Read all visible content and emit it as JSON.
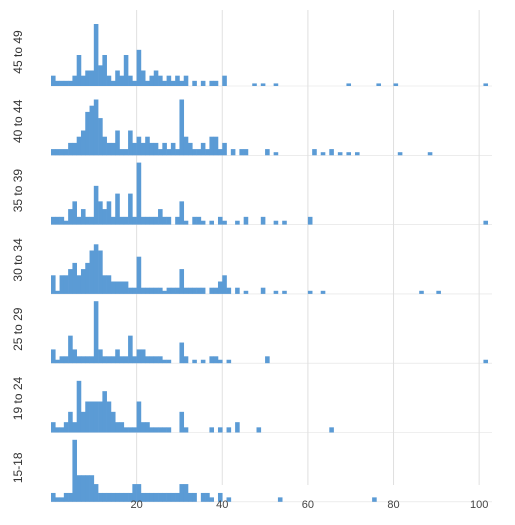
{
  "chart_data": {
    "type": "bar",
    "subtype": "small-multiple histograms",
    "x_axis": {
      "range": [
        0,
        103
      ],
      "ticks": [
        20,
        40,
        60,
        80,
        100
      ],
      "grid": true
    },
    "bar_color": "#5b9bd5",
    "grid_color": "#e0e0e0",
    "panels": [
      {
        "label": "45 to 49",
        "ymax": 12,
        "bins": [
          [
            1,
            2
          ],
          [
            2,
            1
          ],
          [
            3,
            1
          ],
          [
            4,
            1
          ],
          [
            5,
            1
          ],
          [
            6,
            2
          ],
          [
            7,
            6
          ],
          [
            8,
            2
          ],
          [
            9,
            3
          ],
          [
            10,
            3
          ],
          [
            11,
            12
          ],
          [
            12,
            4
          ],
          [
            13,
            6
          ],
          [
            14,
            2
          ],
          [
            15,
            1
          ],
          [
            16,
            3
          ],
          [
            17,
            2
          ],
          [
            18,
            6
          ],
          [
            19,
            2
          ],
          [
            20,
            1
          ],
          [
            21,
            7
          ],
          [
            22,
            3
          ],
          [
            23,
            1
          ],
          [
            24,
            2
          ],
          [
            25,
            3
          ],
          [
            26,
            2
          ],
          [
            27,
            1
          ],
          [
            28,
            2
          ],
          [
            29,
            1
          ],
          [
            30,
            2
          ],
          [
            31,
            1
          ],
          [
            32,
            2
          ],
          [
            34,
            1
          ],
          [
            36,
            1
          ],
          [
            38,
            1
          ],
          [
            39,
            1
          ],
          [
            41,
            2
          ],
          [
            48,
            0.5
          ],
          [
            50,
            0.5
          ],
          [
            53,
            0.5
          ],
          [
            70,
            0.5
          ],
          [
            77,
            0.5
          ],
          [
            81,
            0.5
          ],
          [
            102,
            0.5
          ]
        ]
      },
      {
        "label": "40 to 44",
        "ymax": 10,
        "bins": [
          [
            1,
            1
          ],
          [
            2,
            1
          ],
          [
            3,
            1
          ],
          [
            4,
            1
          ],
          [
            5,
            2
          ],
          [
            6,
            2
          ],
          [
            7,
            3
          ],
          [
            8,
            4
          ],
          [
            9,
            7
          ],
          [
            10,
            8
          ],
          [
            11,
            9
          ],
          [
            12,
            6
          ],
          [
            13,
            3
          ],
          [
            14,
            2
          ],
          [
            15,
            2
          ],
          [
            16,
            4
          ],
          [
            17,
            1
          ],
          [
            18,
            1
          ],
          [
            19,
            4
          ],
          [
            20,
            2
          ],
          [
            21,
            3
          ],
          [
            22,
            2
          ],
          [
            23,
            3
          ],
          [
            24,
            2
          ],
          [
            25,
            2
          ],
          [
            26,
            1
          ],
          [
            27,
            2
          ],
          [
            28,
            1
          ],
          [
            29,
            2
          ],
          [
            30,
            1
          ],
          [
            31,
            9
          ],
          [
            32,
            3
          ],
          [
            33,
            2
          ],
          [
            34,
            1
          ],
          [
            35,
            1
          ],
          [
            36,
            2
          ],
          [
            37,
            1
          ],
          [
            38,
            3
          ],
          [
            39,
            3
          ],
          [
            40,
            1
          ],
          [
            41,
            2
          ],
          [
            43,
            1
          ],
          [
            45,
            1
          ],
          [
            46,
            1
          ],
          [
            51,
            1
          ],
          [
            53,
            0.5
          ],
          [
            62,
            1
          ],
          [
            64,
            0.5
          ],
          [
            66,
            1
          ],
          [
            68,
            0.5
          ],
          [
            70,
            0.5
          ],
          [
            72,
            0.5
          ],
          [
            82,
            0.5
          ],
          [
            89,
            0.5
          ]
        ]
      },
      {
        "label": "35 to 39",
        "ymax": 8,
        "bins": [
          [
            1,
            1
          ],
          [
            2,
            1
          ],
          [
            3,
            1
          ],
          [
            4,
            0.5
          ],
          [
            5,
            2
          ],
          [
            6,
            3
          ],
          [
            7,
            1
          ],
          [
            8,
            2
          ],
          [
            9,
            1
          ],
          [
            10,
            1
          ],
          [
            11,
            5
          ],
          [
            12,
            3
          ],
          [
            13,
            2
          ],
          [
            14,
            3
          ],
          [
            15,
            1
          ],
          [
            16,
            4
          ],
          [
            17,
            1
          ],
          [
            18,
            1
          ],
          [
            19,
            4
          ],
          [
            20,
            1
          ],
          [
            21,
            8
          ],
          [
            22,
            1
          ],
          [
            23,
            1
          ],
          [
            24,
            1
          ],
          [
            25,
            1
          ],
          [
            26,
            2
          ],
          [
            27,
            1
          ],
          [
            28,
            1
          ],
          [
            30,
            1
          ],
          [
            31,
            3
          ],
          [
            32,
            0.5
          ],
          [
            34,
            1
          ],
          [
            35,
            1
          ],
          [
            36,
            0.5
          ],
          [
            38,
            0.5
          ],
          [
            40,
            1
          ],
          [
            41,
            0.5
          ],
          [
            44,
            0.5
          ],
          [
            46,
            1
          ],
          [
            50,
            1
          ],
          [
            53,
            0.5
          ],
          [
            55,
            0.5
          ],
          [
            61,
            1
          ],
          [
            102,
            0.5
          ]
        ]
      },
      {
        "label": "30 to 34",
        "ymax": 10,
        "bins": [
          [
            1,
            3
          ],
          [
            2,
            0.5
          ],
          [
            3,
            3
          ],
          [
            4,
            3
          ],
          [
            5,
            4
          ],
          [
            6,
            5
          ],
          [
            7,
            3
          ],
          [
            8,
            4
          ],
          [
            9,
            5
          ],
          [
            10,
            7
          ],
          [
            11,
            8
          ],
          [
            12,
            7
          ],
          [
            13,
            3
          ],
          [
            14,
            3
          ],
          [
            15,
            2
          ],
          [
            16,
            2
          ],
          [
            17,
            2
          ],
          [
            18,
            2
          ],
          [
            19,
            1
          ],
          [
            20,
            1
          ],
          [
            21,
            6
          ],
          [
            22,
            1
          ],
          [
            23,
            1
          ],
          [
            24,
            1
          ],
          [
            25,
            1
          ],
          [
            26,
            1
          ],
          [
            27,
            0.5
          ],
          [
            28,
            1
          ],
          [
            29,
            1
          ],
          [
            30,
            1
          ],
          [
            31,
            4
          ],
          [
            32,
            1
          ],
          [
            33,
            1
          ],
          [
            34,
            1
          ],
          [
            35,
            1
          ],
          [
            36,
            1
          ],
          [
            38,
            1
          ],
          [
            39,
            1
          ],
          [
            40,
            2
          ],
          [
            41,
            3
          ],
          [
            42,
            1
          ],
          [
            44,
            1
          ],
          [
            46,
            0.5
          ],
          [
            50,
            1
          ],
          [
            53,
            0.5
          ],
          [
            55,
            0.5
          ],
          [
            61,
            0.5
          ],
          [
            64,
            0.5
          ],
          [
            87,
            0.5
          ],
          [
            91,
            0.5
          ]
        ]
      },
      {
        "label": "25 to 29",
        "ymax": 9,
        "bins": [
          [
            1,
            2
          ],
          [
            2,
            0.5
          ],
          [
            3,
            1
          ],
          [
            4,
            1
          ],
          [
            5,
            4
          ],
          [
            6,
            2
          ],
          [
            7,
            1
          ],
          [
            8,
            1
          ],
          [
            9,
            1
          ],
          [
            10,
            1
          ],
          [
            11,
            9
          ],
          [
            12,
            2
          ],
          [
            13,
            1
          ],
          [
            14,
            1
          ],
          [
            15,
            1
          ],
          [
            16,
            2
          ],
          [
            17,
            1
          ],
          [
            18,
            1
          ],
          [
            19,
            4
          ],
          [
            20,
            1
          ],
          [
            21,
            2
          ],
          [
            22,
            2
          ],
          [
            23,
            1
          ],
          [
            24,
            1
          ],
          [
            25,
            1
          ],
          [
            26,
            1
          ],
          [
            27,
            0.5
          ],
          [
            28,
            0.5
          ],
          [
            31,
            3
          ],
          [
            32,
            1
          ],
          [
            34,
            0.5
          ],
          [
            36,
            0.5
          ],
          [
            38,
            1
          ],
          [
            39,
            1
          ],
          [
            40,
            0.5
          ],
          [
            42,
            0.5
          ],
          [
            51,
            1
          ],
          [
            102,
            0.5
          ]
        ]
      },
      {
        "label": "19 to 24",
        "ymax": 6,
        "bins": [
          [
            1,
            1
          ],
          [
            2,
            0.5
          ],
          [
            3,
            0.5
          ],
          [
            4,
            1
          ],
          [
            5,
            2
          ],
          [
            6,
            1
          ],
          [
            7,
            5
          ],
          [
            8,
            2
          ],
          [
            9,
            3
          ],
          [
            10,
            3
          ],
          [
            11,
            3
          ],
          [
            12,
            3
          ],
          [
            13,
            4
          ],
          [
            14,
            3
          ],
          [
            15,
            2
          ],
          [
            16,
            1
          ],
          [
            17,
            1
          ],
          [
            18,
            0.5
          ],
          [
            19,
            0.5
          ],
          [
            20,
            0.5
          ],
          [
            21,
            3
          ],
          [
            22,
            1
          ],
          [
            23,
            1
          ],
          [
            24,
            0.5
          ],
          [
            25,
            0.5
          ],
          [
            26,
            0.5
          ],
          [
            27,
            0.5
          ],
          [
            28,
            0.5
          ],
          [
            31,
            2
          ],
          [
            32,
            0.5
          ],
          [
            38,
            0.5
          ],
          [
            40,
            0.5
          ],
          [
            42,
            0.5
          ],
          [
            44,
            1
          ],
          [
            49,
            0.5
          ],
          [
            66,
            0.5
          ]
        ]
      },
      {
        "label": "15-18",
        "ymax": 7,
        "bins": [
          [
            1,
            1
          ],
          [
            2,
            0.5
          ],
          [
            3,
            0.5
          ],
          [
            4,
            1
          ],
          [
            5,
            1
          ],
          [
            6,
            7
          ],
          [
            7,
            3
          ],
          [
            8,
            3
          ],
          [
            9,
            3
          ],
          [
            10,
            3
          ],
          [
            11,
            2
          ],
          [
            12,
            1
          ],
          [
            13,
            1
          ],
          [
            14,
            1
          ],
          [
            15,
            1
          ],
          [
            16,
            1
          ],
          [
            17,
            1
          ],
          [
            18,
            1
          ],
          [
            19,
            1
          ],
          [
            20,
            2
          ],
          [
            21,
            2
          ],
          [
            22,
            1
          ],
          [
            23,
            1
          ],
          [
            24,
            1
          ],
          [
            25,
            1
          ],
          [
            26,
            1
          ],
          [
            27,
            1
          ],
          [
            28,
            1
          ],
          [
            29,
            1
          ],
          [
            30,
            1
          ],
          [
            31,
            2
          ],
          [
            32,
            2
          ],
          [
            33,
            1
          ],
          [
            34,
            1
          ],
          [
            36,
            1
          ],
          [
            37,
            1
          ],
          [
            38,
            0.5
          ],
          [
            40,
            1
          ],
          [
            42,
            0.5
          ],
          [
            54,
            0.5
          ],
          [
            76,
            0.5
          ]
        ]
      }
    ]
  }
}
